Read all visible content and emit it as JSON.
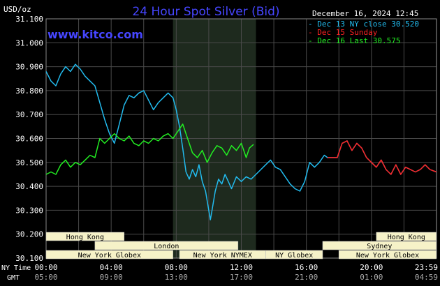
{
  "title": "24 Hour Spot Silver (Bid)",
  "watermark": "www.kitco.com",
  "timestamp": "December 16, 2024 12:45",
  "colors": {
    "background": "#000000",
    "grid": "#4a4a4a",
    "axis_text": "#ffffff",
    "title": "#4646ff",
    "watermark": "#4646ff",
    "session_bg": "#1e2a1e",
    "box_fill": "#f6f2c8",
    "box_text": "#000000"
  },
  "chart_data": {
    "type": "line",
    "ylabel": "USD/oz",
    "xlabel_ny": "NY Time",
    "xlabel_gmt": "GMT",
    "ylim": [
      30.1,
      31.1
    ],
    "xlim": [
      0,
      24
    ],
    "yticks": [
      "30.100",
      "30.200",
      "30.300",
      "30.400",
      "30.500",
      "30.600",
      "30.700",
      "30.800",
      "30.900",
      "31.000",
      "31.100"
    ],
    "xticks_ny": [
      "00:00",
      "04:00",
      "08:00",
      "12:00",
      "16:00",
      "20:00",
      "23:59"
    ],
    "xticks_gmt": [
      "05:00",
      "09:00",
      "13:00",
      "17:00",
      "21:00",
      "01:00",
      "04:59"
    ],
    "xtick_hours": [
      0,
      4,
      8,
      12,
      16,
      20,
      24
    ],
    "session_shade": [
      7.8,
      12.9
    ],
    "legend_position": "top-right",
    "series": [
      {
        "name": "Dec 13 NY close 30.520",
        "color": "#22bbee",
        "x": [
          0,
          0.3,
          0.6,
          0.9,
          1.2,
          1.5,
          1.8,
          2.1,
          2.4,
          2.7,
          3.0,
          3.3,
          3.6,
          3.9,
          4.2,
          4.5,
          4.8,
          5.1,
          5.4,
          5.7,
          6.0,
          6.3,
          6.6,
          6.9,
          7.2,
          7.5,
          7.8,
          8.0,
          8.2,
          8.4,
          8.6,
          8.8,
          9.0,
          9.2,
          9.4,
          9.6,
          9.8,
          10.0,
          10.1,
          10.2,
          10.4,
          10.6,
          10.8,
          11.0,
          11.2,
          11.4,
          11.7,
          12.0,
          12.3,
          12.6,
          12.9,
          13.2,
          13.5,
          13.8,
          14.1,
          14.4,
          14.7,
          15.0,
          15.3,
          15.6,
          15.9,
          16.2,
          16.5,
          16.8,
          17.1,
          17.3,
          17.6,
          17.9,
          18.2,
          18.5,
          18.8,
          19.1,
          19.4,
          19.7,
          20.0,
          20.3,
          20.6,
          20.9,
          21.2,
          21.5,
          21.8,
          22.1,
          22.4,
          22.7,
          23.0,
          23.3,
          23.6,
          23.99
        ],
        "y": [
          30.88,
          30.84,
          30.82,
          30.87,
          30.9,
          30.88,
          30.91,
          30.89,
          30.86,
          30.84,
          30.82,
          30.75,
          30.68,
          30.62,
          30.58,
          30.66,
          30.74,
          30.78,
          30.77,
          30.79,
          30.8,
          30.76,
          30.72,
          30.75,
          30.77,
          30.79,
          30.77,
          30.72,
          30.65,
          30.56,
          30.46,
          30.43,
          30.47,
          30.44,
          30.49,
          30.42,
          30.38,
          30.3,
          30.26,
          30.3,
          30.38,
          30.43,
          30.41,
          30.45,
          30.42,
          30.39,
          30.44,
          30.42,
          30.44,
          30.43,
          30.45,
          30.47,
          30.49,
          30.51,
          30.48,
          30.47,
          30.44,
          30.41,
          30.39,
          30.38,
          30.42,
          30.5,
          30.48,
          30.5,
          30.53,
          30.52,
          30.52,
          30.52,
          30.58,
          30.59,
          30.55,
          30.58,
          30.56,
          30.52,
          30.5,
          30.48,
          30.51,
          30.47,
          30.45,
          30.49,
          30.45,
          30.48,
          30.47,
          30.46,
          30.47,
          30.49,
          30.47,
          30.46
        ]
      },
      {
        "name": "Dec 15 Sunday",
        "color": "#ff2222",
        "x": [
          17.3,
          17.6,
          17.9,
          18.2,
          18.5,
          18.8,
          19.1,
          19.4,
          19.7,
          20.0,
          20.3,
          20.6,
          20.9,
          21.2,
          21.5,
          21.8,
          22.1,
          22.4,
          22.7,
          23.0,
          23.3,
          23.6,
          23.99
        ],
        "y": [
          30.52,
          30.52,
          30.52,
          30.58,
          30.59,
          30.55,
          30.58,
          30.56,
          30.52,
          30.5,
          30.48,
          30.51,
          30.47,
          30.45,
          30.49,
          30.45,
          30.48,
          30.47,
          30.46,
          30.47,
          30.49,
          30.47,
          30.46
        ]
      },
      {
        "name": "Dec 16 Last 30.575",
        "color": "#22ee22",
        "x": [
          0,
          0.3,
          0.6,
          0.9,
          1.2,
          1.5,
          1.8,
          2.1,
          2.4,
          2.7,
          3.0,
          3.3,
          3.6,
          3.9,
          4.2,
          4.5,
          4.8,
          5.1,
          5.4,
          5.7,
          6.0,
          6.3,
          6.6,
          6.9,
          7.2,
          7.5,
          7.8,
          8.1,
          8.4,
          8.7,
          9.0,
          9.3,
          9.6,
          9.9,
          10.2,
          10.5,
          10.8,
          11.1,
          11.4,
          11.7,
          12.0,
          12.3,
          12.5,
          12.75
        ],
        "y": [
          30.45,
          30.46,
          30.45,
          30.49,
          30.51,
          30.48,
          30.5,
          30.49,
          30.51,
          30.53,
          30.52,
          30.6,
          30.58,
          30.6,
          30.62,
          30.6,
          30.59,
          30.61,
          30.58,
          30.57,
          30.59,
          30.58,
          30.6,
          30.59,
          30.61,
          30.62,
          30.6,
          30.63,
          30.66,
          30.6,
          30.54,
          30.52,
          30.55,
          30.5,
          30.54,
          30.57,
          30.56,
          30.53,
          30.57,
          30.55,
          30.58,
          30.52,
          30.56,
          30.575
        ]
      }
    ],
    "sessions": [
      {
        "label": "Hong Kong",
        "start": 0,
        "end": 4.8,
        "row": 0
      },
      {
        "label": "Hong Kong",
        "start": 20.3,
        "end": 23.99,
        "row": 0
      },
      {
        "label": "London",
        "start": 3.0,
        "end": 11.8,
        "row": 1
      },
      {
        "label": "Sydney",
        "start": 17.0,
        "end": 23.99,
        "row": 1
      },
      {
        "label": "New York Globex",
        "start": 0,
        "end": 7.8,
        "row": 2
      },
      {
        "label": "New York NYMEX",
        "start": 8.2,
        "end": 13.5,
        "row": 2
      },
      {
        "label": "NY Globex",
        "start": 13.5,
        "end": 17.0,
        "row": 2
      },
      {
        "label": "New York Globex",
        "start": 18.0,
        "end": 23.99,
        "row": 2
      }
    ]
  }
}
